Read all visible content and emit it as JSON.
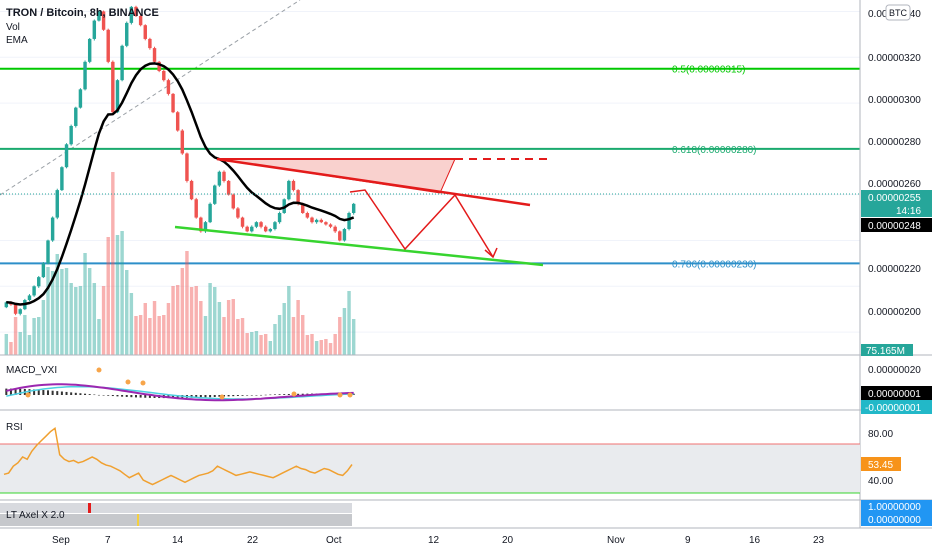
{
  "header": {
    "title": "TRON / Bitcoin, 8h, BINANCE",
    "indicator_1": "Vol",
    "indicator_2": "EMA",
    "currency_badge": "BTC"
  },
  "panes": {
    "macd": {
      "title": "MACD_VXI"
    },
    "rsi": {
      "title": "RSI"
    },
    "axel": {
      "title": "LT Axel X 2.0"
    }
  },
  "price_axis": {
    "ticks": [
      "0.00000340",
      "0.00000320",
      "0.00000300",
      "0.00000280",
      "0.00000260",
      "0.00000220",
      "0.00000200"
    ],
    "badges": {
      "last_price": "0.00000255",
      "countdown": "14:16",
      "ema_value": "0.00000248",
      "volume": "75.165M"
    }
  },
  "macd_axis": {
    "ticks": [
      "0.00000020"
    ],
    "badges": {
      "value_1": "0.00000001",
      "value_2": "-0.00000001"
    }
  },
  "rsi_axis": {
    "ticks": [
      "80.00",
      "40.00"
    ],
    "badges": {
      "value": "53.45"
    }
  },
  "axel_axis": {
    "badges": {
      "value_1": "1.00000000",
      "value_2": "0.00000000"
    }
  },
  "time_axis": {
    "labels": [
      "Sep",
      "7",
      "14",
      "22",
      "Oct",
      "12",
      "20",
      "Nov",
      "9",
      "16",
      "23"
    ]
  },
  "fib_levels": [
    {
      "label": "0.5(0.00000315)",
      "value": 3.15e-06,
      "color": "#00c800"
    },
    {
      "label": "0.618(0.00000280)",
      "value": 2.8e-06,
      "color": "#1aaa6e"
    },
    {
      "label": "0.786(0.00000230)",
      "value": 2.3e-06,
      "color": "#2d8fc9"
    }
  ],
  "colors": {
    "up": "#26a69a",
    "down": "#ef5350",
    "ema": "#000000",
    "macd_line": "#9c27b0",
    "signal_line": "#4dd0e1",
    "rsi_line": "#f0a030",
    "drawing_red": "#e31b1b",
    "drawing_green": "#37d42f",
    "last_price_badge": "#26a69a",
    "axel_badge": "#2196f3",
    "macd_badge": "#22b8c8",
    "rsi_badge": "#f7931a"
  },
  "chart_data": {
    "type": "candlestick",
    "x_range": [
      "2019-09-01",
      "2019-12-28"
    ],
    "ylim": [
      1.9e-06,
      3.45e-06
    ],
    "candles_close_trajectory": [
      [
        2.13e-06,
        2.12e-06,
        2.08e-06,
        2.1e-06,
        2.14e-06,
        2.16e-06,
        2.2e-06,
        2.24e-06,
        2.3e-06,
        2.4e-06,
        2.5e-06,
        2.62e-06,
        2.72e-06,
        2.82e-06,
        2.9e-06,
        2.98e-06,
        3.06e-06,
        3.18e-06,
        3.28e-06,
        3.36e-06,
        3.4e-06,
        3.32e-06,
        3.18e-06,
        2.96e-06,
        3.1e-06,
        3.25e-06,
        3.35e-06,
        3.42e-06,
        3.38e-06,
        3.34e-06,
        3.28e-06,
        3.24e-06,
        3.18e-06,
        3.14e-06,
        3.1e-06,
        3.04e-06,
        2.96e-06,
        2.88e-06,
        2.78e-06,
        2.66e-06,
        2.58e-06,
        2.5e-06,
        2.44e-06,
        2.48e-06,
        2.56e-06,
        2.64e-06,
        2.7e-06,
        2.66e-06,
        2.6e-06,
        2.54e-06,
        2.5e-06,
        2.46e-06,
        2.44e-06,
        2.46e-06,
        2.48e-06,
        2.46e-06,
        2.44e-06,
        2.45e-06,
        2.48e-06,
        2.52e-06,
        2.58e-06,
        2.66e-06,
        2.62e-06,
        2.56e-06,
        2.52e-06,
        2.5e-06,
        2.48e-06,
        2.49e-06,
        2.48e-06,
        2.47e-06,
        2.46e-06,
        2.44e-06,
        2.4e-06,
        2.45e-06,
        2.52e-06,
        2.56e-06
      ]
    ],
    "macd_values": [
      0.0,
      1e-07,
      2e-07,
      -1e-07,
      0.0
    ],
    "rsi_last": 53.45,
    "rsi_bands": [
      30,
      70
    ]
  }
}
